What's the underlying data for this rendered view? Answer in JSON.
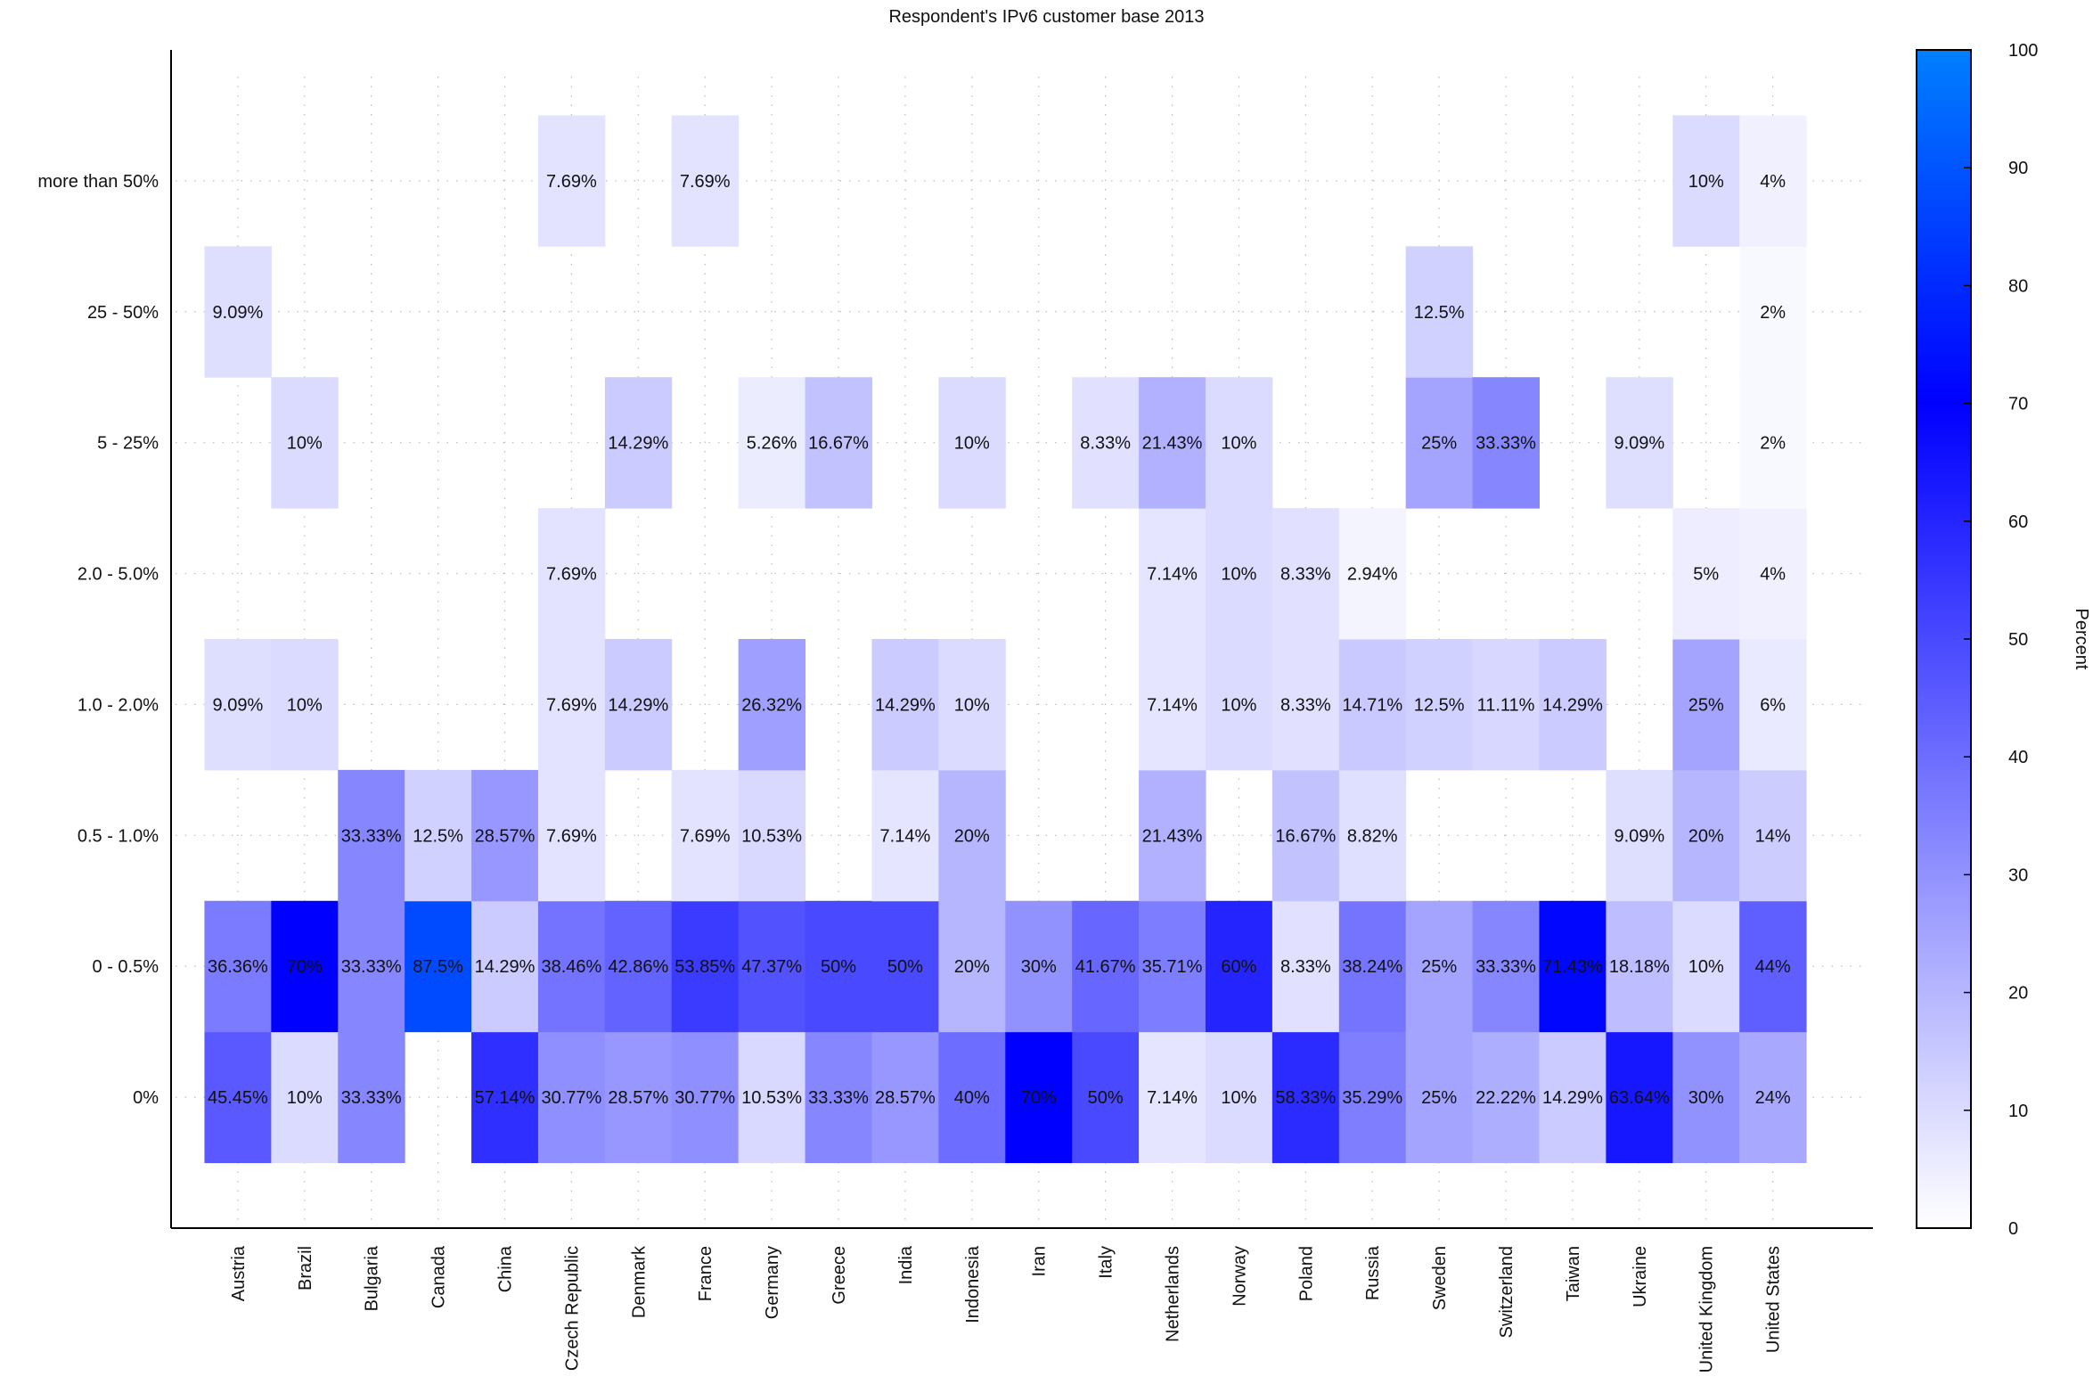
{
  "chart_data": {
    "type": "heatmap",
    "title": "Respondent's IPv6 customer base 2013",
    "xlabel": "",
    "ylabel": "",
    "colorbar_label": "Percent",
    "colorbar_ticks": [
      0,
      10,
      20,
      30,
      40,
      50,
      60,
      70,
      80,
      90,
      100
    ],
    "colorbar_range": [
      0,
      100
    ],
    "colormap": [
      "#ffffff",
      "#0000ff",
      "#007fff"
    ],
    "grid": "dotted",
    "x_categories": [
      "Austria",
      "Brazil",
      "Bulgaria",
      "Canada",
      "China",
      "Czech Republic",
      "Denmark",
      "France",
      "Germany",
      "Greece",
      "India",
      "Indonesia",
      "Iran",
      "Italy",
      "Netherlands",
      "Norway",
      "Poland",
      "Russia",
      "Sweden",
      "Switzerland",
      "Taiwan",
      "Ukraine",
      "United Kingdom",
      "United States"
    ],
    "y_categories": [
      "0%",
      "0 - 0.5%",
      "0.5 - 1.0%",
      "1.0 - 2.0%",
      "2.0 - 5.0%",
      "5 - 25%",
      "25 - 50%",
      "more than 50%"
    ],
    "cells": [
      {
        "x": "Austria",
        "y": "0%",
        "value": 45.45,
        "label": "45.45%"
      },
      {
        "x": "Austria",
        "y": "0 - 0.5%",
        "value": 36.36,
        "label": "36.36%"
      },
      {
        "x": "Austria",
        "y": "1.0 - 2.0%",
        "value": 9.09,
        "label": "9.09%"
      },
      {
        "x": "Austria",
        "y": "25 - 50%",
        "value": 9.09,
        "label": "9.09%"
      },
      {
        "x": "Brazil",
        "y": "0%",
        "value": 10,
        "label": "10%"
      },
      {
        "x": "Brazil",
        "y": "0 - 0.5%",
        "value": 70,
        "label": "70%"
      },
      {
        "x": "Brazil",
        "y": "1.0 - 2.0%",
        "value": 10,
        "label": "10%"
      },
      {
        "x": "Brazil",
        "y": "5 - 25%",
        "value": 10,
        "label": "10%"
      },
      {
        "x": "Bulgaria",
        "y": "0%",
        "value": 33.33,
        "label": "33.33%"
      },
      {
        "x": "Bulgaria",
        "y": "0 - 0.5%",
        "value": 33.33,
        "label": "33.33%"
      },
      {
        "x": "Bulgaria",
        "y": "0.5 - 1.0%",
        "value": 33.33,
        "label": "33.33%"
      },
      {
        "x": "Canada",
        "y": "0 - 0.5%",
        "value": 87.5,
        "label": "87.5%"
      },
      {
        "x": "Canada",
        "y": "0.5 - 1.0%",
        "value": 12.5,
        "label": "12.5%"
      },
      {
        "x": "China",
        "y": "0%",
        "value": 57.14,
        "label": "57.14%"
      },
      {
        "x": "China",
        "y": "0 - 0.5%",
        "value": 14.29,
        "label": "14.29%"
      },
      {
        "x": "China",
        "y": "0.5 - 1.0%",
        "value": 28.57,
        "label": "28.57%"
      },
      {
        "x": "Czech Republic",
        "y": "0%",
        "value": 30.77,
        "label": "30.77%"
      },
      {
        "x": "Czech Republic",
        "y": "0 - 0.5%",
        "value": 38.46,
        "label": "38.46%"
      },
      {
        "x": "Czech Republic",
        "y": "0.5 - 1.0%",
        "value": 7.69,
        "label": "7.69%"
      },
      {
        "x": "Czech Republic",
        "y": "1.0 - 2.0%",
        "value": 7.69,
        "label": "7.69%"
      },
      {
        "x": "Czech Republic",
        "y": "2.0 - 5.0%",
        "value": 7.69,
        "label": "7.69%"
      },
      {
        "x": "Czech Republic",
        "y": "more than 50%",
        "value": 7.69,
        "label": "7.69%"
      },
      {
        "x": "Denmark",
        "y": "0%",
        "value": 28.57,
        "label": "28.57%"
      },
      {
        "x": "Denmark",
        "y": "0 - 0.5%",
        "value": 42.86,
        "label": "42.86%"
      },
      {
        "x": "Denmark",
        "y": "1.0 - 2.0%",
        "value": 14.29,
        "label": "14.29%"
      },
      {
        "x": "Denmark",
        "y": "5 - 25%",
        "value": 14.29,
        "label": "14.29%"
      },
      {
        "x": "France",
        "y": "0%",
        "value": 30.77,
        "label": "30.77%"
      },
      {
        "x": "France",
        "y": "0 - 0.5%",
        "value": 53.85,
        "label": "53.85%"
      },
      {
        "x": "France",
        "y": "0.5 - 1.0%",
        "value": 7.69,
        "label": "7.69%"
      },
      {
        "x": "France",
        "y": "more than 50%",
        "value": 7.69,
        "label": "7.69%"
      },
      {
        "x": "Germany",
        "y": "0%",
        "value": 10.53,
        "label": "10.53%"
      },
      {
        "x": "Germany",
        "y": "0 - 0.5%",
        "value": 47.37,
        "label": "47.37%"
      },
      {
        "x": "Germany",
        "y": "0.5 - 1.0%",
        "value": 10.53,
        "label": "10.53%"
      },
      {
        "x": "Germany",
        "y": "1.0 - 2.0%",
        "value": 26.32,
        "label": "26.32%"
      },
      {
        "x": "Germany",
        "y": "5 - 25%",
        "value": 5.26,
        "label": "5.26%"
      },
      {
        "x": "Greece",
        "y": "0%",
        "value": 33.33,
        "label": "33.33%"
      },
      {
        "x": "Greece",
        "y": "0 - 0.5%",
        "value": 50,
        "label": "50%"
      },
      {
        "x": "Greece",
        "y": "5 - 25%",
        "value": 16.67,
        "label": "16.67%"
      },
      {
        "x": "India",
        "y": "0%",
        "value": 28.57,
        "label": "28.57%"
      },
      {
        "x": "India",
        "y": "0 - 0.5%",
        "value": 50,
        "label": "50%"
      },
      {
        "x": "India",
        "y": "0.5 - 1.0%",
        "value": 7.14,
        "label": "7.14%"
      },
      {
        "x": "India",
        "y": "1.0 - 2.0%",
        "value": 14.29,
        "label": "14.29%"
      },
      {
        "x": "Indonesia",
        "y": "0%",
        "value": 40,
        "label": "40%"
      },
      {
        "x": "Indonesia",
        "y": "0 - 0.5%",
        "value": 20,
        "label": "20%"
      },
      {
        "x": "Indonesia",
        "y": "0.5 - 1.0%",
        "value": 20,
        "label": "20%"
      },
      {
        "x": "Indonesia",
        "y": "1.0 - 2.0%",
        "value": 10,
        "label": "10%"
      },
      {
        "x": "Indonesia",
        "y": "5 - 25%",
        "value": 10,
        "label": "10%"
      },
      {
        "x": "Iran",
        "y": "0%",
        "value": 70,
        "label": "70%"
      },
      {
        "x": "Iran",
        "y": "0 - 0.5%",
        "value": 30,
        "label": "30%"
      },
      {
        "x": "Italy",
        "y": "0%",
        "value": 50,
        "label": "50%"
      },
      {
        "x": "Italy",
        "y": "0 - 0.5%",
        "value": 41.67,
        "label": "41.67%"
      },
      {
        "x": "Italy",
        "y": "5 - 25%",
        "value": 8.33,
        "label": "8.33%"
      },
      {
        "x": "Netherlands",
        "y": "0%",
        "value": 7.14,
        "label": "7.14%"
      },
      {
        "x": "Netherlands",
        "y": "0 - 0.5%",
        "value": 35.71,
        "label": "35.71%"
      },
      {
        "x": "Netherlands",
        "y": "0.5 - 1.0%",
        "value": 21.43,
        "label": "21.43%"
      },
      {
        "x": "Netherlands",
        "y": "1.0 - 2.0%",
        "value": 7.14,
        "label": "7.14%"
      },
      {
        "x": "Netherlands",
        "y": "2.0 - 5.0%",
        "value": 7.14,
        "label": "7.14%"
      },
      {
        "x": "Netherlands",
        "y": "5 - 25%",
        "value": 21.43,
        "label": "21.43%"
      },
      {
        "x": "Norway",
        "y": "0%",
        "value": 10,
        "label": "10%"
      },
      {
        "x": "Norway",
        "y": "0 - 0.5%",
        "value": 60,
        "label": "60%"
      },
      {
        "x": "Norway",
        "y": "1.0 - 2.0%",
        "value": 10,
        "label": "10%"
      },
      {
        "x": "Norway",
        "y": "2.0 - 5.0%",
        "value": 10,
        "label": "10%"
      },
      {
        "x": "Norway",
        "y": "5 - 25%",
        "value": 10,
        "label": "10%"
      },
      {
        "x": "Poland",
        "y": "0%",
        "value": 58.33,
        "label": "58.33%"
      },
      {
        "x": "Poland",
        "y": "0 - 0.5%",
        "value": 8.33,
        "label": "8.33%"
      },
      {
        "x": "Poland",
        "y": "0.5 - 1.0%",
        "value": 16.67,
        "label": "16.67%"
      },
      {
        "x": "Poland",
        "y": "1.0 - 2.0%",
        "value": 8.33,
        "label": "8.33%"
      },
      {
        "x": "Poland",
        "y": "2.0 - 5.0%",
        "value": 8.33,
        "label": "8.33%"
      },
      {
        "x": "Russia",
        "y": "0%",
        "value": 35.29,
        "label": "35.29%"
      },
      {
        "x": "Russia",
        "y": "0 - 0.5%",
        "value": 38.24,
        "label": "38.24%"
      },
      {
        "x": "Russia",
        "y": "0.5 - 1.0%",
        "value": 8.82,
        "label": "8.82%"
      },
      {
        "x": "Russia",
        "y": "1.0 - 2.0%",
        "value": 14.71,
        "label": "14.71%"
      },
      {
        "x": "Russia",
        "y": "2.0 - 5.0%",
        "value": 2.94,
        "label": "2.94%"
      },
      {
        "x": "Sweden",
        "y": "0%",
        "value": 25,
        "label": "25%"
      },
      {
        "x": "Sweden",
        "y": "0 - 0.5%",
        "value": 25,
        "label": "25%"
      },
      {
        "x": "Sweden",
        "y": "1.0 - 2.0%",
        "value": 12.5,
        "label": "12.5%"
      },
      {
        "x": "Sweden",
        "y": "5 - 25%",
        "value": 25,
        "label": "25%"
      },
      {
        "x": "Sweden",
        "y": "25 - 50%",
        "value": 12.5,
        "label": "12.5%"
      },
      {
        "x": "Switzerland",
        "y": "0%",
        "value": 22.22,
        "label": "22.22%"
      },
      {
        "x": "Switzerland",
        "y": "0 - 0.5%",
        "value": 33.33,
        "label": "33.33%"
      },
      {
        "x": "Switzerland",
        "y": "1.0 - 2.0%",
        "value": 11.11,
        "label": "11.11%"
      },
      {
        "x": "Switzerland",
        "y": "5 - 25%",
        "value": 33.33,
        "label": "33.33%"
      },
      {
        "x": "Taiwan",
        "y": "0%",
        "value": 14.29,
        "label": "14.29%"
      },
      {
        "x": "Taiwan",
        "y": "0 - 0.5%",
        "value": 71.43,
        "label": "71.43%"
      },
      {
        "x": "Taiwan",
        "y": "1.0 - 2.0%",
        "value": 14.29,
        "label": "14.29%"
      },
      {
        "x": "Ukraine",
        "y": "0%",
        "value": 63.64,
        "label": "63.64%"
      },
      {
        "x": "Ukraine",
        "y": "0 - 0.5%",
        "value": 18.18,
        "label": "18.18%"
      },
      {
        "x": "Ukraine",
        "y": "0.5 - 1.0%",
        "value": 9.09,
        "label": "9.09%"
      },
      {
        "x": "Ukraine",
        "y": "5 - 25%",
        "value": 9.09,
        "label": "9.09%"
      },
      {
        "x": "United Kingdom",
        "y": "0%",
        "value": 30,
        "label": "30%"
      },
      {
        "x": "United Kingdom",
        "y": "0 - 0.5%",
        "value": 10,
        "label": "10%"
      },
      {
        "x": "United Kingdom",
        "y": "0.5 - 1.0%",
        "value": 20,
        "label": "20%"
      },
      {
        "x": "United Kingdom",
        "y": "1.0 - 2.0%",
        "value": 25,
        "label": "25%"
      },
      {
        "x": "United Kingdom",
        "y": "2.0 - 5.0%",
        "value": 5,
        "label": "5%"
      },
      {
        "x": "United Kingdom",
        "y": "more than 50%",
        "value": 10,
        "label": "10%"
      },
      {
        "x": "United States",
        "y": "0%",
        "value": 24,
        "label": "24%"
      },
      {
        "x": "United States",
        "y": "0 - 0.5%",
        "value": 44,
        "label": "44%"
      },
      {
        "x": "United States",
        "y": "0.5 - 1.0%",
        "value": 14,
        "label": "14%"
      },
      {
        "x": "United States",
        "y": "1.0 - 2.0%",
        "value": 6,
        "label": "6%"
      },
      {
        "x": "United States",
        "y": "2.0 - 5.0%",
        "value": 4,
        "label": "4%"
      },
      {
        "x": "United States",
        "y": "5 - 25%",
        "value": 2,
        "label": "2%"
      },
      {
        "x": "United States",
        "y": "25 - 50%",
        "value": 2,
        "label": "2%"
      },
      {
        "x": "United States",
        "y": "more than 50%",
        "value": 4,
        "label": "4%"
      }
    ]
  }
}
